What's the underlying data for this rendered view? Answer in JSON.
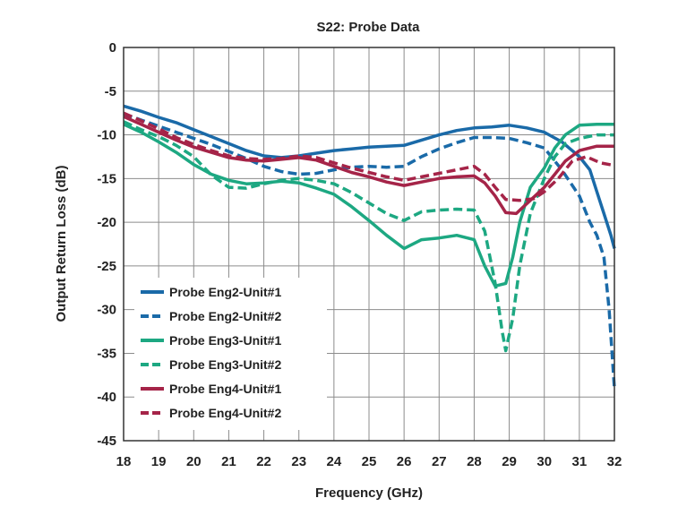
{
  "chart_data": {
    "type": "line",
    "title": "S22:  Probe Data",
    "xlabel": "Frequency (GHz)",
    "ylabel": "Output Return Loss (dB)",
    "xlim": [
      18,
      32
    ],
    "ylim": [
      -45,
      0
    ],
    "xticks": [
      18,
      19,
      20,
      21,
      22,
      23,
      24,
      25,
      26,
      27,
      28,
      29,
      30,
      31,
      32
    ],
    "yticks": [
      0,
      -5,
      -10,
      -15,
      -20,
      -25,
      -30,
      -35,
      -40,
      -45
    ],
    "grid": true,
    "legend_position": "lower-left",
    "series": [
      {
        "name": "Probe Eng2-Unit#1",
        "color": "#1a6aa8",
        "dash": "solid",
        "points": [
          [
            18,
            -6.7
          ],
          [
            18.5,
            -7.3
          ],
          [
            19,
            -8.0
          ],
          [
            19.5,
            -8.6
          ],
          [
            20,
            -9.4
          ],
          [
            20.5,
            -10.2
          ],
          [
            21,
            -11.0
          ],
          [
            21.5,
            -11.8
          ],
          [
            22,
            -12.4
          ],
          [
            22.5,
            -12.6
          ],
          [
            23,
            -12.4
          ],
          [
            23.5,
            -12.1
          ],
          [
            24,
            -11.8
          ],
          [
            24.5,
            -11.6
          ],
          [
            25,
            -11.4
          ],
          [
            25.5,
            -11.3
          ],
          [
            26,
            -11.2
          ],
          [
            26.5,
            -10.6
          ],
          [
            27,
            -10.0
          ],
          [
            27.5,
            -9.5
          ],
          [
            28,
            -9.2
          ],
          [
            28.5,
            -9.1
          ],
          [
            29,
            -8.9
          ],
          [
            29.5,
            -9.2
          ],
          [
            30,
            -9.7
          ],
          [
            30.5,
            -10.8
          ],
          [
            31,
            -12.5
          ],
          [
            31.3,
            -14.0
          ],
          [
            31.5,
            -16.5
          ],
          [
            31.7,
            -19.0
          ],
          [
            31.9,
            -21.5
          ],
          [
            32,
            -23.0
          ]
        ]
      },
      {
        "name": "Probe Eng2-Unit#2",
        "color": "#1a6aa8",
        "dash": "dashed",
        "points": [
          [
            18,
            -7.6
          ],
          [
            18.5,
            -8.3
          ],
          [
            19,
            -9.0
          ],
          [
            19.5,
            -9.7
          ],
          [
            20,
            -10.4
          ],
          [
            20.5,
            -11.1
          ],
          [
            21,
            -11.9
          ],
          [
            21.5,
            -12.7
          ],
          [
            22,
            -13.6
          ],
          [
            22.5,
            -14.2
          ],
          [
            23,
            -14.5
          ],
          [
            23.5,
            -14.4
          ],
          [
            24,
            -14.0
          ],
          [
            24.5,
            -13.7
          ],
          [
            25,
            -13.6
          ],
          [
            25.5,
            -13.7
          ],
          [
            26,
            -13.6
          ],
          [
            26.5,
            -12.5
          ],
          [
            27,
            -11.6
          ],
          [
            27.5,
            -10.9
          ],
          [
            28,
            -10.3
          ],
          [
            28.5,
            -10.3
          ],
          [
            29,
            -10.4
          ],
          [
            29.5,
            -10.9
          ],
          [
            30,
            -11.5
          ],
          [
            30.5,
            -14.0
          ],
          [
            31,
            -17.0
          ],
          [
            31.3,
            -20.0
          ],
          [
            31.5,
            -21.5
          ],
          [
            31.7,
            -24.0
          ],
          [
            31.85,
            -30.0
          ],
          [
            32,
            -39.0
          ]
        ]
      },
      {
        "name": "Probe Eng3-Unit#1",
        "color": "#1da882",
        "dash": "solid",
        "points": [
          [
            18,
            -8.8
          ],
          [
            18.5,
            -9.7
          ],
          [
            19,
            -10.8
          ],
          [
            19.5,
            -12.0
          ],
          [
            20,
            -13.4
          ],
          [
            20.5,
            -14.5
          ],
          [
            21,
            -15.2
          ],
          [
            21.5,
            -15.6
          ],
          [
            22,
            -15.5
          ],
          [
            22.5,
            -15.3
          ],
          [
            23,
            -15.5
          ],
          [
            23.5,
            -16.1
          ],
          [
            24,
            -16.8
          ],
          [
            24.5,
            -18.2
          ],
          [
            25,
            -19.8
          ],
          [
            25.5,
            -21.5
          ],
          [
            26,
            -23.0
          ],
          [
            26.5,
            -22.0
          ],
          [
            27,
            -21.8
          ],
          [
            27.5,
            -21.5
          ],
          [
            28,
            -22.0
          ],
          [
            28.3,
            -25.0
          ],
          [
            28.6,
            -27.3
          ],
          [
            28.9,
            -27.0
          ],
          [
            29.1,
            -24.0
          ],
          [
            29.3,
            -20.0
          ],
          [
            29.6,
            -16.0
          ],
          [
            30,
            -13.8
          ],
          [
            30.3,
            -11.5
          ],
          [
            30.6,
            -10.0
          ],
          [
            31,
            -8.9
          ],
          [
            31.5,
            -8.8
          ],
          [
            32,
            -8.8
          ]
        ]
      },
      {
        "name": "Probe Eng3-Unit#2",
        "color": "#1da882",
        "dash": "dashed",
        "points": [
          [
            18,
            -8.5
          ],
          [
            18.5,
            -9.4
          ],
          [
            19,
            -10.2
          ],
          [
            19.5,
            -11.2
          ],
          [
            20,
            -12.5
          ],
          [
            20.5,
            -14.6
          ],
          [
            21,
            -16.0
          ],
          [
            21.5,
            -16.1
          ],
          [
            22,
            -15.6
          ],
          [
            22.5,
            -15.2
          ],
          [
            23,
            -15.0
          ],
          [
            23.5,
            -15.2
          ],
          [
            24,
            -15.6
          ],
          [
            24.5,
            -16.6
          ],
          [
            25,
            -17.8
          ],
          [
            25.5,
            -19.0
          ],
          [
            26,
            -19.8
          ],
          [
            26.5,
            -18.8
          ],
          [
            27,
            -18.6
          ],
          [
            27.5,
            -18.5
          ],
          [
            28,
            -18.6
          ],
          [
            28.3,
            -21.0
          ],
          [
            28.6,
            -27.0
          ],
          [
            28.8,
            -32.5
          ],
          [
            28.9,
            -34.7
          ],
          [
            29.1,
            -31.0
          ],
          [
            29.3,
            -25.0
          ],
          [
            29.6,
            -19.0
          ],
          [
            30,
            -15.0
          ],
          [
            30.3,
            -12.5
          ],
          [
            30.6,
            -11.0
          ],
          [
            31,
            -10.4
          ],
          [
            31.5,
            -10.0
          ],
          [
            32,
            -10.0
          ]
        ]
      },
      {
        "name": "Probe Eng4-Unit#1",
        "color": "#a52448",
        "dash": "solid",
        "points": [
          [
            18,
            -7.9
          ],
          [
            18.5,
            -8.8
          ],
          [
            19,
            -9.7
          ],
          [
            19.5,
            -10.6
          ],
          [
            20,
            -11.4
          ],
          [
            20.5,
            -12.0
          ],
          [
            21,
            -12.6
          ],
          [
            21.5,
            -12.9
          ],
          [
            22,
            -13.0
          ],
          [
            22.5,
            -12.8
          ],
          [
            23,
            -12.6
          ],
          [
            23.5,
            -12.9
          ],
          [
            24,
            -13.6
          ],
          [
            24.5,
            -14.3
          ],
          [
            25,
            -14.8
          ],
          [
            25.5,
            -15.4
          ],
          [
            26,
            -15.8
          ],
          [
            26.5,
            -15.4
          ],
          [
            27,
            -15.0
          ],
          [
            27.5,
            -14.8
          ],
          [
            28,
            -14.7
          ],
          [
            28.3,
            -15.5
          ],
          [
            28.6,
            -17.0
          ],
          [
            28.9,
            -18.9
          ],
          [
            29.2,
            -19.0
          ],
          [
            29.6,
            -17.5
          ],
          [
            30,
            -16.0
          ],
          [
            30.3,
            -14.5
          ],
          [
            30.6,
            -13.0
          ],
          [
            31,
            -11.8
          ],
          [
            31.5,
            -11.3
          ],
          [
            32,
            -11.3
          ]
        ]
      },
      {
        "name": "Probe Eng4-Unit#2",
        "color": "#a52448",
        "dash": "dashed",
        "points": [
          [
            18,
            -7.5
          ],
          [
            18.5,
            -8.4
          ],
          [
            19,
            -9.3
          ],
          [
            19.5,
            -10.3
          ],
          [
            20,
            -11.1
          ],
          [
            20.5,
            -11.8
          ],
          [
            21,
            -12.4
          ],
          [
            21.5,
            -12.7
          ],
          [
            22,
            -12.8
          ],
          [
            22.5,
            -12.7
          ],
          [
            23,
            -12.4
          ],
          [
            23.5,
            -12.6
          ],
          [
            24,
            -13.2
          ],
          [
            24.5,
            -13.8
          ],
          [
            25,
            -14.3
          ],
          [
            25.5,
            -14.8
          ],
          [
            26,
            -15.2
          ],
          [
            26.5,
            -14.8
          ],
          [
            27,
            -14.4
          ],
          [
            27.5,
            -14.0
          ],
          [
            28,
            -13.6
          ],
          [
            28.3,
            -14.5
          ],
          [
            28.6,
            -16.0
          ],
          [
            28.9,
            -17.4
          ],
          [
            29.3,
            -17.5
          ],
          [
            29.7,
            -17.3
          ],
          [
            30,
            -16.5
          ],
          [
            30.4,
            -15.0
          ],
          [
            30.8,
            -13.0
          ],
          [
            31.2,
            -12.5
          ],
          [
            31.6,
            -13.2
          ],
          [
            32,
            -13.5
          ]
        ]
      }
    ]
  }
}
